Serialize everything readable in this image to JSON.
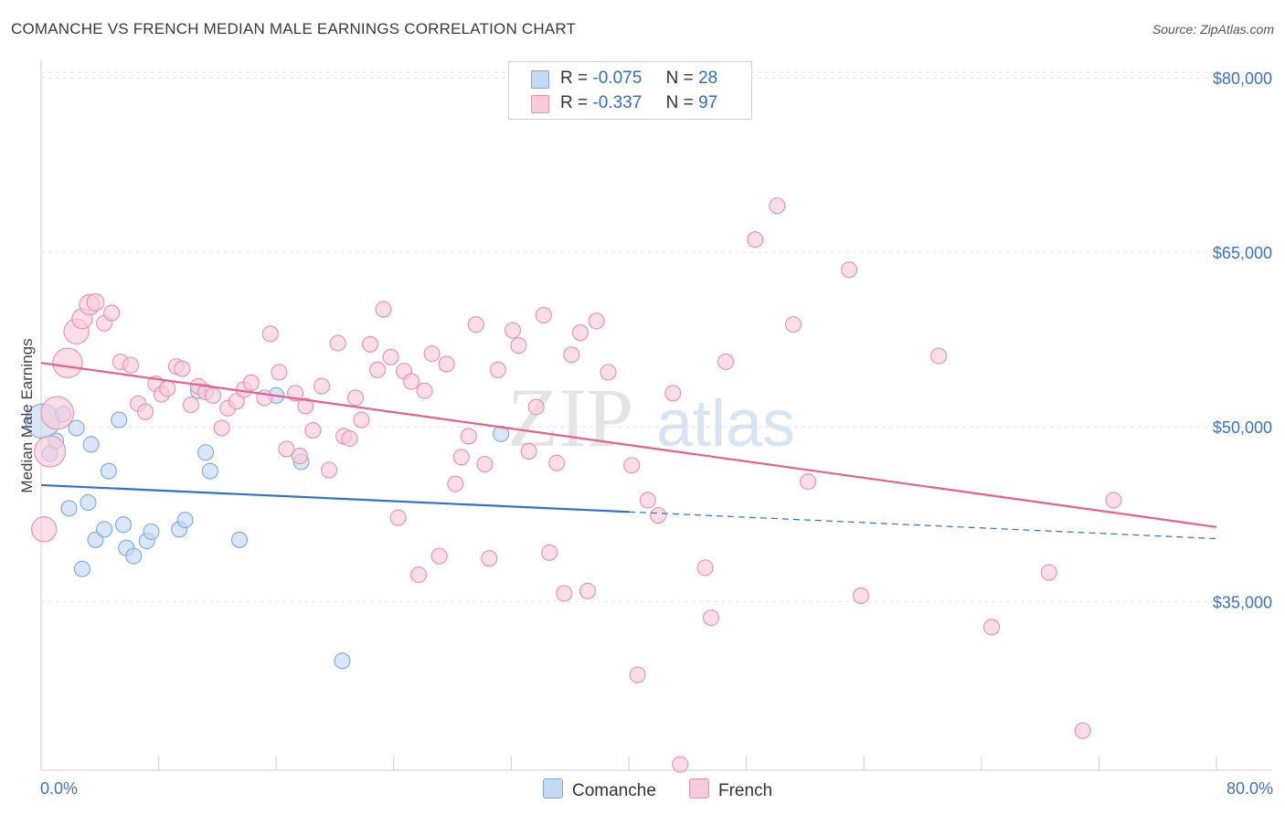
{
  "title": "COMANCHE VS FRENCH MEDIAN MALE EARNINGS CORRELATION CHART",
  "source": "Source: ZipAtlas.com",
  "watermark": {
    "zip": "ZIP",
    "atlas": "atlas"
  },
  "legend": {
    "rows": [
      {
        "series": "Comanche",
        "r_label": "R =",
        "r_value": "-0.075",
        "n_label": "N =",
        "n_value": "28",
        "color": "#aac8f0"
      },
      {
        "series": "French",
        "r_label": "R =",
        "r_value": "-0.337",
        "n_label": "N =",
        "n_value": "97",
        "color": "#f6b8cc"
      }
    ]
  },
  "bottom_legend": [
    {
      "label": "Comanche",
      "color": "#aac8f0"
    },
    {
      "label": "French",
      "color": "#f6b8cc"
    }
  ],
  "chart_data": {
    "type": "scatter",
    "title": "COMANCHE VS FRENCH MEDIAN MALE EARNINGS CORRELATION CHART",
    "xlabel": "",
    "ylabel": "Median Male Earnings",
    "xlim": [
      0,
      80
    ],
    "ylim": [
      20500,
      81500
    ],
    "x_tick_labels": [
      {
        "value": 0,
        "label": "0.0%"
      },
      {
        "value": 80,
        "label": "80.0%"
      }
    ],
    "y_tick_labels": [
      {
        "value": 80000,
        "label": "$80,000"
      },
      {
        "value": 65000,
        "label": "$65,000"
      },
      {
        "value": 50000,
        "label": "$50,000"
      },
      {
        "value": 35000,
        "label": "$35,000"
      }
    ],
    "grid": "horizontal dashed",
    "series": [
      {
        "name": "Comanche",
        "color": "#7aaae8",
        "fill": "#c3d9f5",
        "line_color": "#2f72d0",
        "trend": {
          "x": [
            0,
            40
          ],
          "y": [
            45000,
            42700
          ],
          "dashed_extension_to": [
            80,
            40400
          ]
        },
        "points": [
          [
            0.1,
            50500,
            2.2
          ],
          [
            0.6,
            47700,
            1
          ],
          [
            1.0,
            48800,
            1
          ],
          [
            1.5,
            51100,
            1
          ],
          [
            2.4,
            49900,
            1
          ],
          [
            1.9,
            43000,
            1
          ],
          [
            3.2,
            43500,
            1
          ],
          [
            3.4,
            48500,
            1
          ],
          [
            2.8,
            37800,
            1
          ],
          [
            3.7,
            40300,
            1
          ],
          [
            4.3,
            41200,
            1
          ],
          [
            4.6,
            46200,
            1
          ],
          [
            5.3,
            50600,
            1
          ],
          [
            5.6,
            41600,
            1
          ],
          [
            5.8,
            39600,
            1
          ],
          [
            6.3,
            38900,
            1
          ],
          [
            7.2,
            40200,
            1
          ],
          [
            7.5,
            41000,
            1
          ],
          [
            9.4,
            41200,
            1
          ],
          [
            9.8,
            42000,
            1
          ],
          [
            10.7,
            53100,
            1
          ],
          [
            11.2,
            47800,
            1
          ],
          [
            11.5,
            46200,
            1
          ],
          [
            13.5,
            40300,
            1
          ],
          [
            16.0,
            52700,
            1
          ],
          [
            17.7,
            47000,
            1
          ],
          [
            20.5,
            29900,
            1
          ],
          [
            31.3,
            49400,
            1
          ]
        ]
      },
      {
        "name": "French",
        "color": "#ee8fae",
        "fill": "#f9cbda",
        "line_color": "#e8608e",
        "trend": {
          "x": [
            0,
            80
          ],
          "y": [
            55500,
            41400
          ]
        },
        "points": [
          [
            0.2,
            41200,
            1.6
          ],
          [
            0.6,
            47900,
            2
          ],
          [
            1.1,
            51200,
            2.1
          ],
          [
            1.8,
            55500,
            1.9
          ],
          [
            2.4,
            58200,
            1.6
          ],
          [
            2.8,
            59300,
            1.3
          ],
          [
            3.3,
            60500,
            1.3
          ],
          [
            3.7,
            60700,
            1.1
          ],
          [
            4.3,
            58900,
            1
          ],
          [
            4.8,
            59800,
            1
          ],
          [
            5.4,
            55600,
            1
          ],
          [
            6.1,
            55300,
            1
          ],
          [
            6.6,
            52000,
            1
          ],
          [
            7.1,
            51300,
            1
          ],
          [
            7.8,
            53700,
            1
          ],
          [
            8.2,
            52800,
            1
          ],
          [
            8.6,
            53300,
            1
          ],
          [
            9.2,
            55200,
            1
          ],
          [
            9.6,
            55000,
            1
          ],
          [
            10.2,
            51900,
            1
          ],
          [
            10.7,
            53500,
            1
          ],
          [
            11.2,
            53000,
            1
          ],
          [
            11.7,
            52700,
            1
          ],
          [
            12.3,
            49900,
            1
          ],
          [
            12.7,
            51600,
            1
          ],
          [
            13.3,
            52200,
            1
          ],
          [
            13.8,
            53200,
            1
          ],
          [
            14.3,
            53800,
            1
          ],
          [
            15.2,
            52500,
            1
          ],
          [
            15.6,
            58000,
            1
          ],
          [
            16.2,
            54700,
            1
          ],
          [
            16.7,
            48100,
            1
          ],
          [
            17.3,
            52900,
            1
          ],
          [
            17.6,
            47500,
            1
          ],
          [
            18.0,
            51800,
            1
          ],
          [
            18.5,
            49700,
            1
          ],
          [
            19.1,
            53500,
            1
          ],
          [
            19.6,
            46300,
            1
          ],
          [
            20.2,
            57200,
            1
          ],
          [
            20.6,
            49200,
            1
          ],
          [
            21.0,
            49000,
            1
          ],
          [
            21.4,
            52500,
            1
          ],
          [
            21.8,
            50600,
            1
          ],
          [
            22.4,
            57100,
            1
          ],
          [
            22.9,
            54900,
            1
          ],
          [
            23.3,
            60100,
            1
          ],
          [
            23.8,
            56000,
            1
          ],
          [
            24.3,
            42200,
            1
          ],
          [
            24.7,
            54800,
            1
          ],
          [
            25.2,
            53900,
            1
          ],
          [
            25.7,
            37300,
            1
          ],
          [
            26.1,
            53100,
            1
          ],
          [
            26.6,
            56300,
            1
          ],
          [
            27.1,
            38900,
            1
          ],
          [
            27.6,
            55400,
            1
          ],
          [
            28.2,
            45100,
            1
          ],
          [
            28.6,
            47400,
            1
          ],
          [
            29.1,
            49200,
            1
          ],
          [
            29.6,
            58800,
            1
          ],
          [
            30.2,
            46800,
            1
          ],
          [
            30.5,
            38700,
            1
          ],
          [
            31.1,
            54900,
            1
          ],
          [
            32.1,
            58300,
            1
          ],
          [
            32.5,
            57000,
            1
          ],
          [
            33.2,
            47900,
            1
          ],
          [
            33.7,
            51700,
            1
          ],
          [
            34.2,
            59600,
            1
          ],
          [
            34.6,
            39200,
            1
          ],
          [
            35.1,
            46900,
            1
          ],
          [
            35.6,
            35700,
            1
          ],
          [
            36.1,
            56200,
            1
          ],
          [
            36.7,
            58100,
            1
          ],
          [
            37.2,
            35900,
            1
          ],
          [
            37.8,
            59100,
            1
          ],
          [
            38.6,
            54700,
            1
          ],
          [
            40.2,
            46700,
            1
          ],
          [
            40.6,
            28700,
            1
          ],
          [
            41.3,
            43700,
            1
          ],
          [
            42.0,
            42400,
            1
          ],
          [
            43.0,
            52900,
            1
          ],
          [
            43.5,
            21000,
            1
          ],
          [
            45.2,
            37900,
            1
          ],
          [
            45.6,
            33600,
            1
          ],
          [
            46.6,
            55600,
            1
          ],
          [
            48.6,
            66100,
            1
          ],
          [
            50.1,
            69000,
            1
          ],
          [
            51.2,
            58800,
            1
          ],
          [
            52.2,
            45300,
            1
          ],
          [
            55.0,
            63500,
            1
          ],
          [
            55.8,
            35500,
            1
          ],
          [
            61.1,
            56100,
            1
          ],
          [
            64.7,
            32800,
            1
          ],
          [
            68.6,
            37500,
            1
          ],
          [
            70.9,
            23900,
            1
          ],
          [
            73.0,
            43700,
            1
          ]
        ]
      }
    ]
  }
}
